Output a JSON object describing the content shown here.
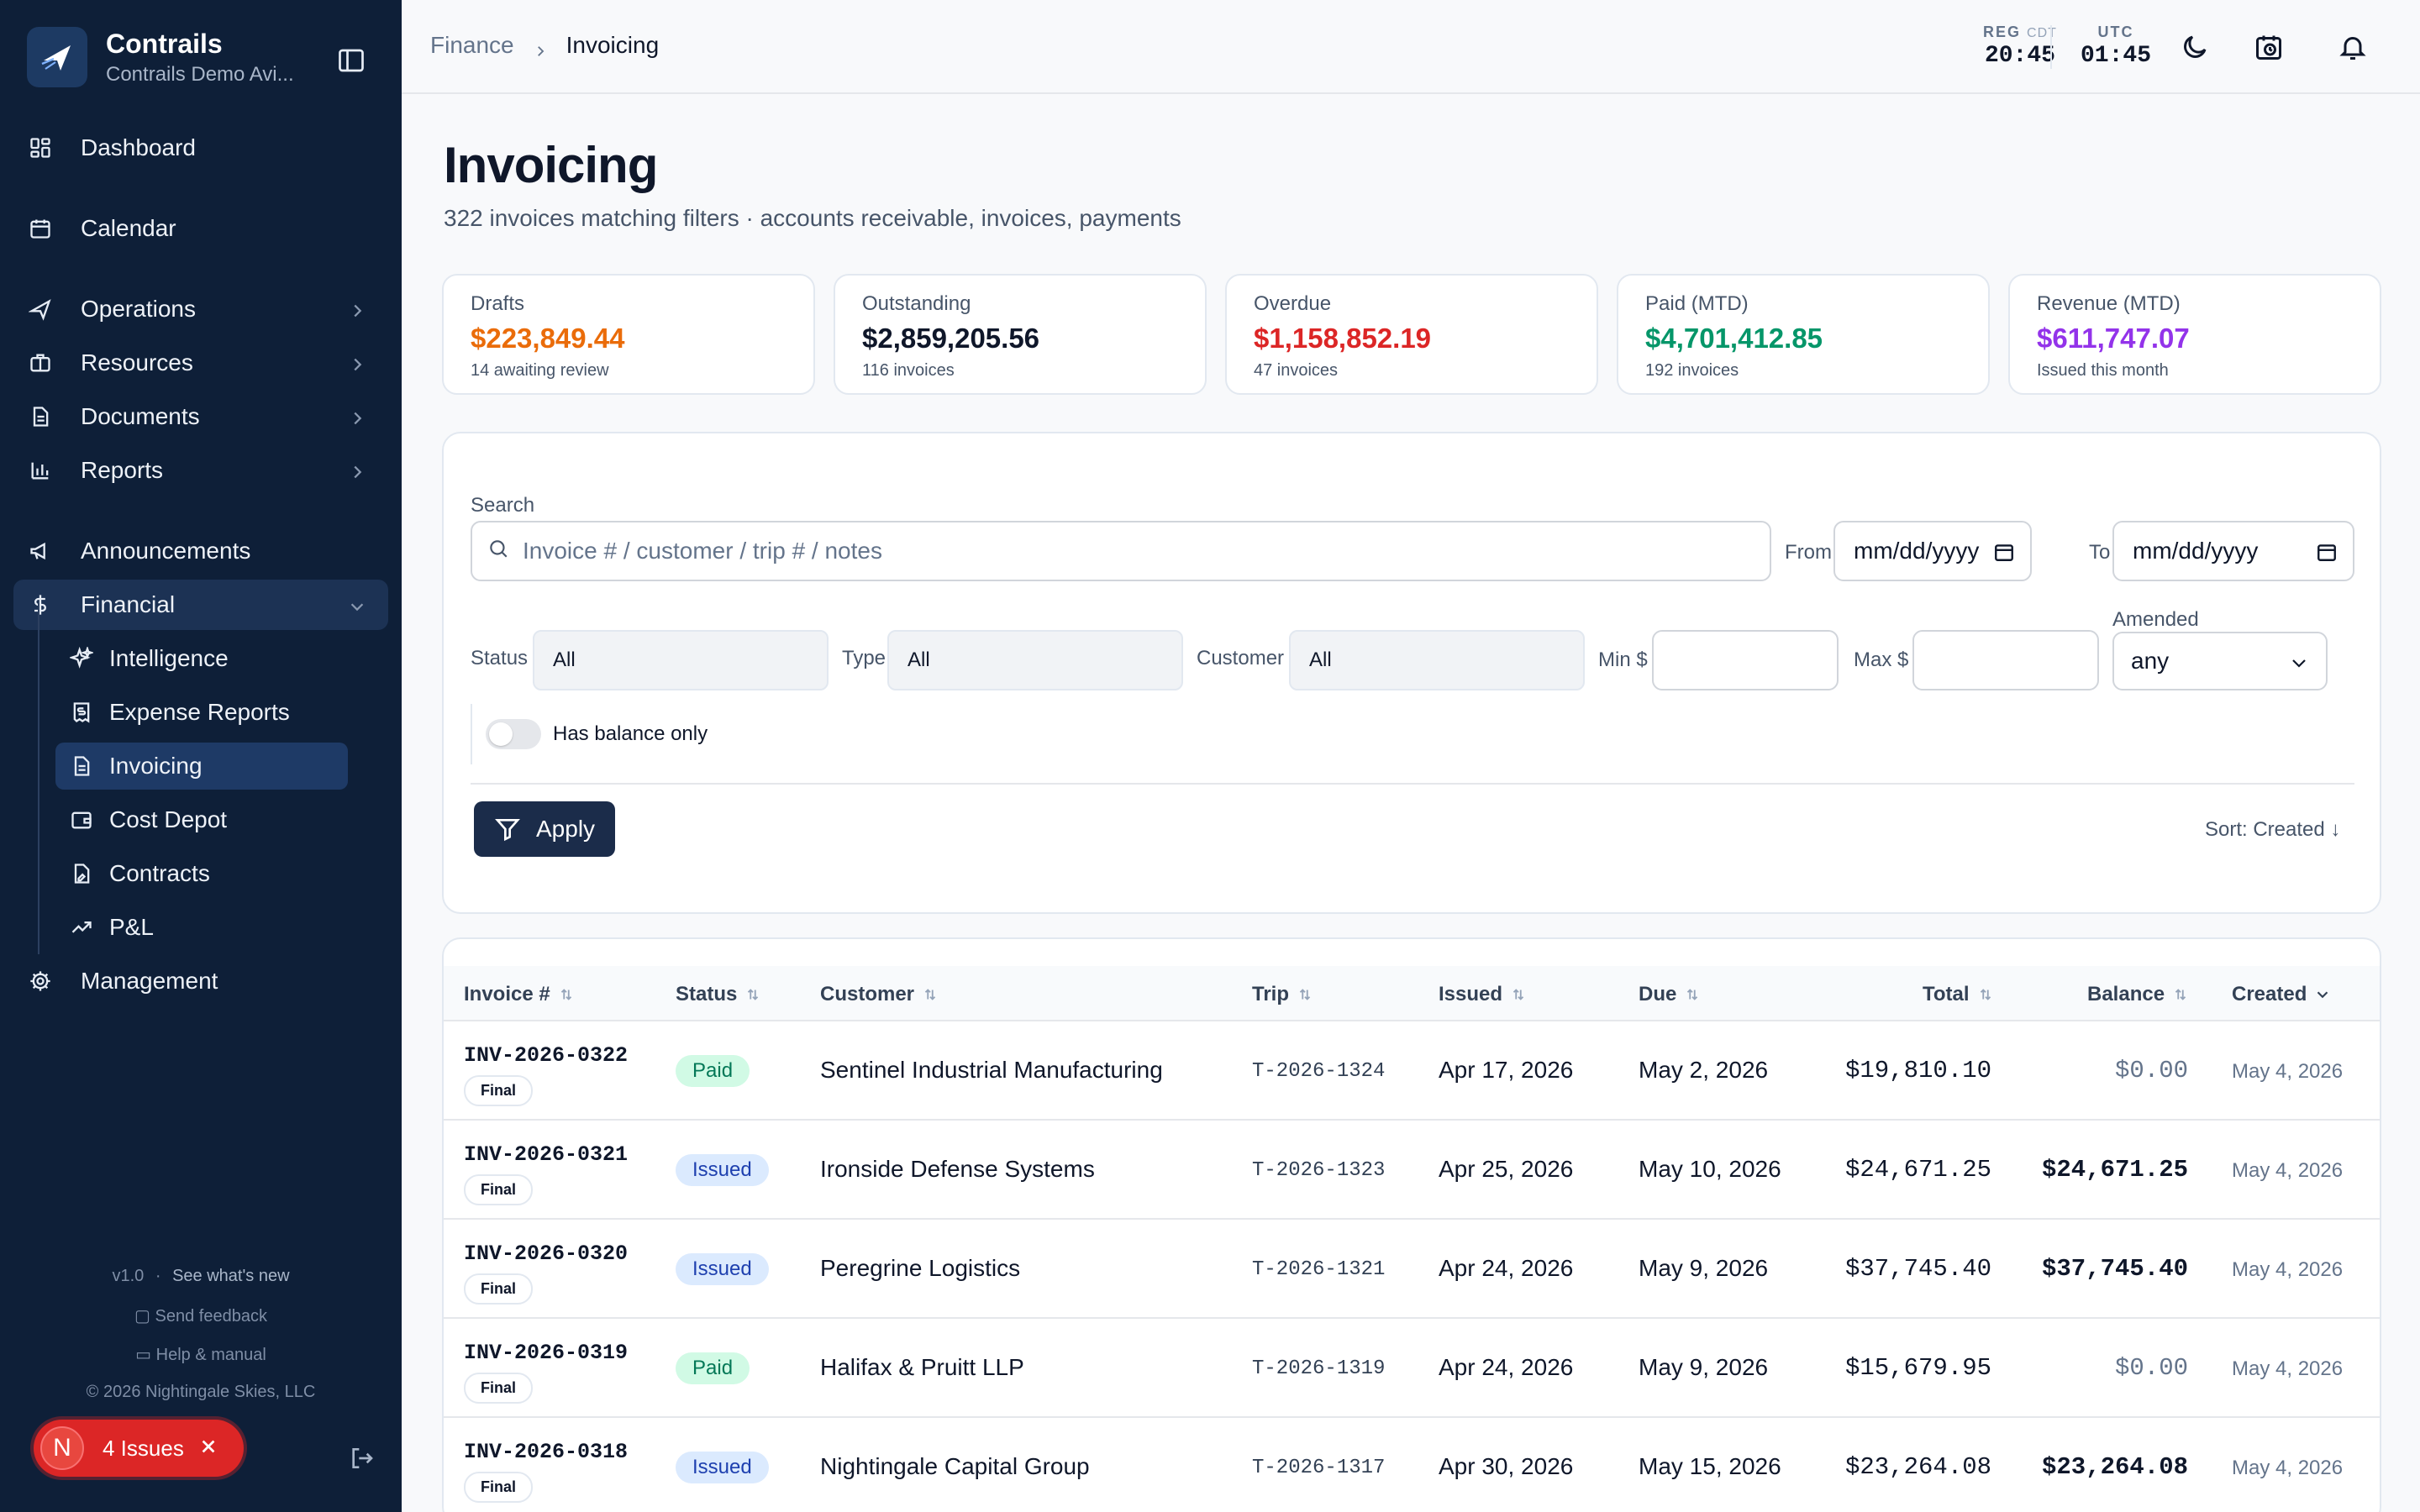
{
  "sidebar": {
    "brand_name": "Contrails",
    "brand_sub": "Contrails Demo Avi...",
    "items": [
      {
        "label": "Dashboard"
      },
      {
        "label": "Calendar"
      },
      {
        "label": "Operations"
      },
      {
        "label": "Resources"
      },
      {
        "label": "Documents"
      },
      {
        "label": "Reports"
      },
      {
        "label": "Announcements"
      },
      {
        "label": "Financial"
      },
      {
        "label": "Management"
      }
    ],
    "financial_sub": [
      {
        "label": "Intelligence"
      },
      {
        "label": "Expense Reports"
      },
      {
        "label": "Invoicing"
      },
      {
        "label": "Cost Depot"
      },
      {
        "label": "Contracts"
      },
      {
        "label": "P&L"
      }
    ],
    "version": "v1.0",
    "dot": "·",
    "whats_new": "See what's new",
    "feedback": "Send feedback",
    "help": "Help & manual",
    "copyright": "© 2026 Nightingale Skies, LLC",
    "issues_avatar": "N",
    "issues_label": "4 Issues"
  },
  "topbar": {
    "crumb_parent": "Finance",
    "crumb_current": "Invoicing",
    "reg_label": "REG",
    "reg_tz": "CDT",
    "reg_time": "20:45",
    "utc_label": "UTC",
    "utc_time": "01:45"
  },
  "page": {
    "title": "Invoicing",
    "subtitle": "322 invoices matching filters · accounts receivable, invoices, payments"
  },
  "stats": [
    {
      "label": "Drafts",
      "value": "$223,849.44",
      "note": "14 awaiting review",
      "color": "#ea6c0a"
    },
    {
      "label": "Outstanding",
      "value": "$2,859,205.56",
      "note": "116 invoices",
      "color": "#0f172a"
    },
    {
      "label": "Overdue",
      "value": "$1,158,852.19",
      "note": "47 invoices",
      "color": "#dc2626"
    },
    {
      "label": "Paid (MTD)",
      "value": "$4,701,412.85",
      "note": "192 invoices",
      "color": "#059669"
    },
    {
      "label": "Revenue (MTD)",
      "value": "$611,747.07",
      "note": "Issued this month",
      "color": "#9333ea"
    }
  ],
  "filters": {
    "search_label": "Search",
    "search_placeholder": "Invoice # / customer / trip # / notes",
    "from_label": "From",
    "from_value": "mm/dd/yyyy",
    "to_label": "To",
    "to_value": "mm/dd/yyyy",
    "status_label": "Status",
    "status_value": "All",
    "type_label": "Type",
    "type_value": "All",
    "customer_label": "Customer",
    "customer_value": "All",
    "min_label": "Min $",
    "max_label": "Max $",
    "amended_label": "Amended",
    "amended_value": "any",
    "balance_toggle": "Has balance only",
    "apply": "Apply",
    "sort": "Sort: Created ↓"
  },
  "table": {
    "headers": [
      "Invoice #",
      "Status",
      "Customer",
      "Trip",
      "Issued",
      "Due",
      "Total",
      "Balance",
      "Created"
    ],
    "rows": [
      {
        "invoice": "INV-2026-0322",
        "tag": "Final",
        "status": "Paid",
        "customer": "Sentinel Industrial Manufacturing",
        "trip": "T-2026-1324",
        "issued": "Apr 17, 2026",
        "due": "May 2, 2026",
        "total": "$19,810.10",
        "balance": "$0.00",
        "created": "May 4, 2026"
      },
      {
        "invoice": "INV-2026-0321",
        "tag": "Final",
        "status": "Issued",
        "customer": "Ironside Defense Systems",
        "trip": "T-2026-1323",
        "issued": "Apr 25, 2026",
        "due": "May 10, 2026",
        "total": "$24,671.25",
        "balance": "$24,671.25",
        "created": "May 4, 2026"
      },
      {
        "invoice": "INV-2026-0320",
        "tag": "Final",
        "status": "Issued",
        "customer": "Peregrine Logistics",
        "trip": "T-2026-1321",
        "issued": "Apr 24, 2026",
        "due": "May 9, 2026",
        "total": "$37,745.40",
        "balance": "$37,745.40",
        "created": "May 4, 2026"
      },
      {
        "invoice": "INV-2026-0319",
        "tag": "Final",
        "status": "Paid",
        "customer": "Halifax & Pruitt LLP",
        "trip": "T-2026-1319",
        "issued": "Apr 24, 2026",
        "due": "May 9, 2026",
        "total": "$15,679.95",
        "balance": "$0.00",
        "created": "May 4, 2026"
      },
      {
        "invoice": "INV-2026-0318",
        "tag": "Final",
        "status": "Issued",
        "customer": "Nightingale Capital Group",
        "trip": "T-2026-1317",
        "issued": "Apr 30, 2026",
        "due": "May 15, 2026",
        "total": "$23,264.08",
        "balance": "$23,264.08",
        "created": "May 4, 2026"
      }
    ]
  },
  "colors": {
    "sidebar_bg": "#0e1f38",
    "paid_badge": "#d1fae5",
    "issued_badge": "#dbeafe",
    "issues_red": "#dc2626"
  }
}
